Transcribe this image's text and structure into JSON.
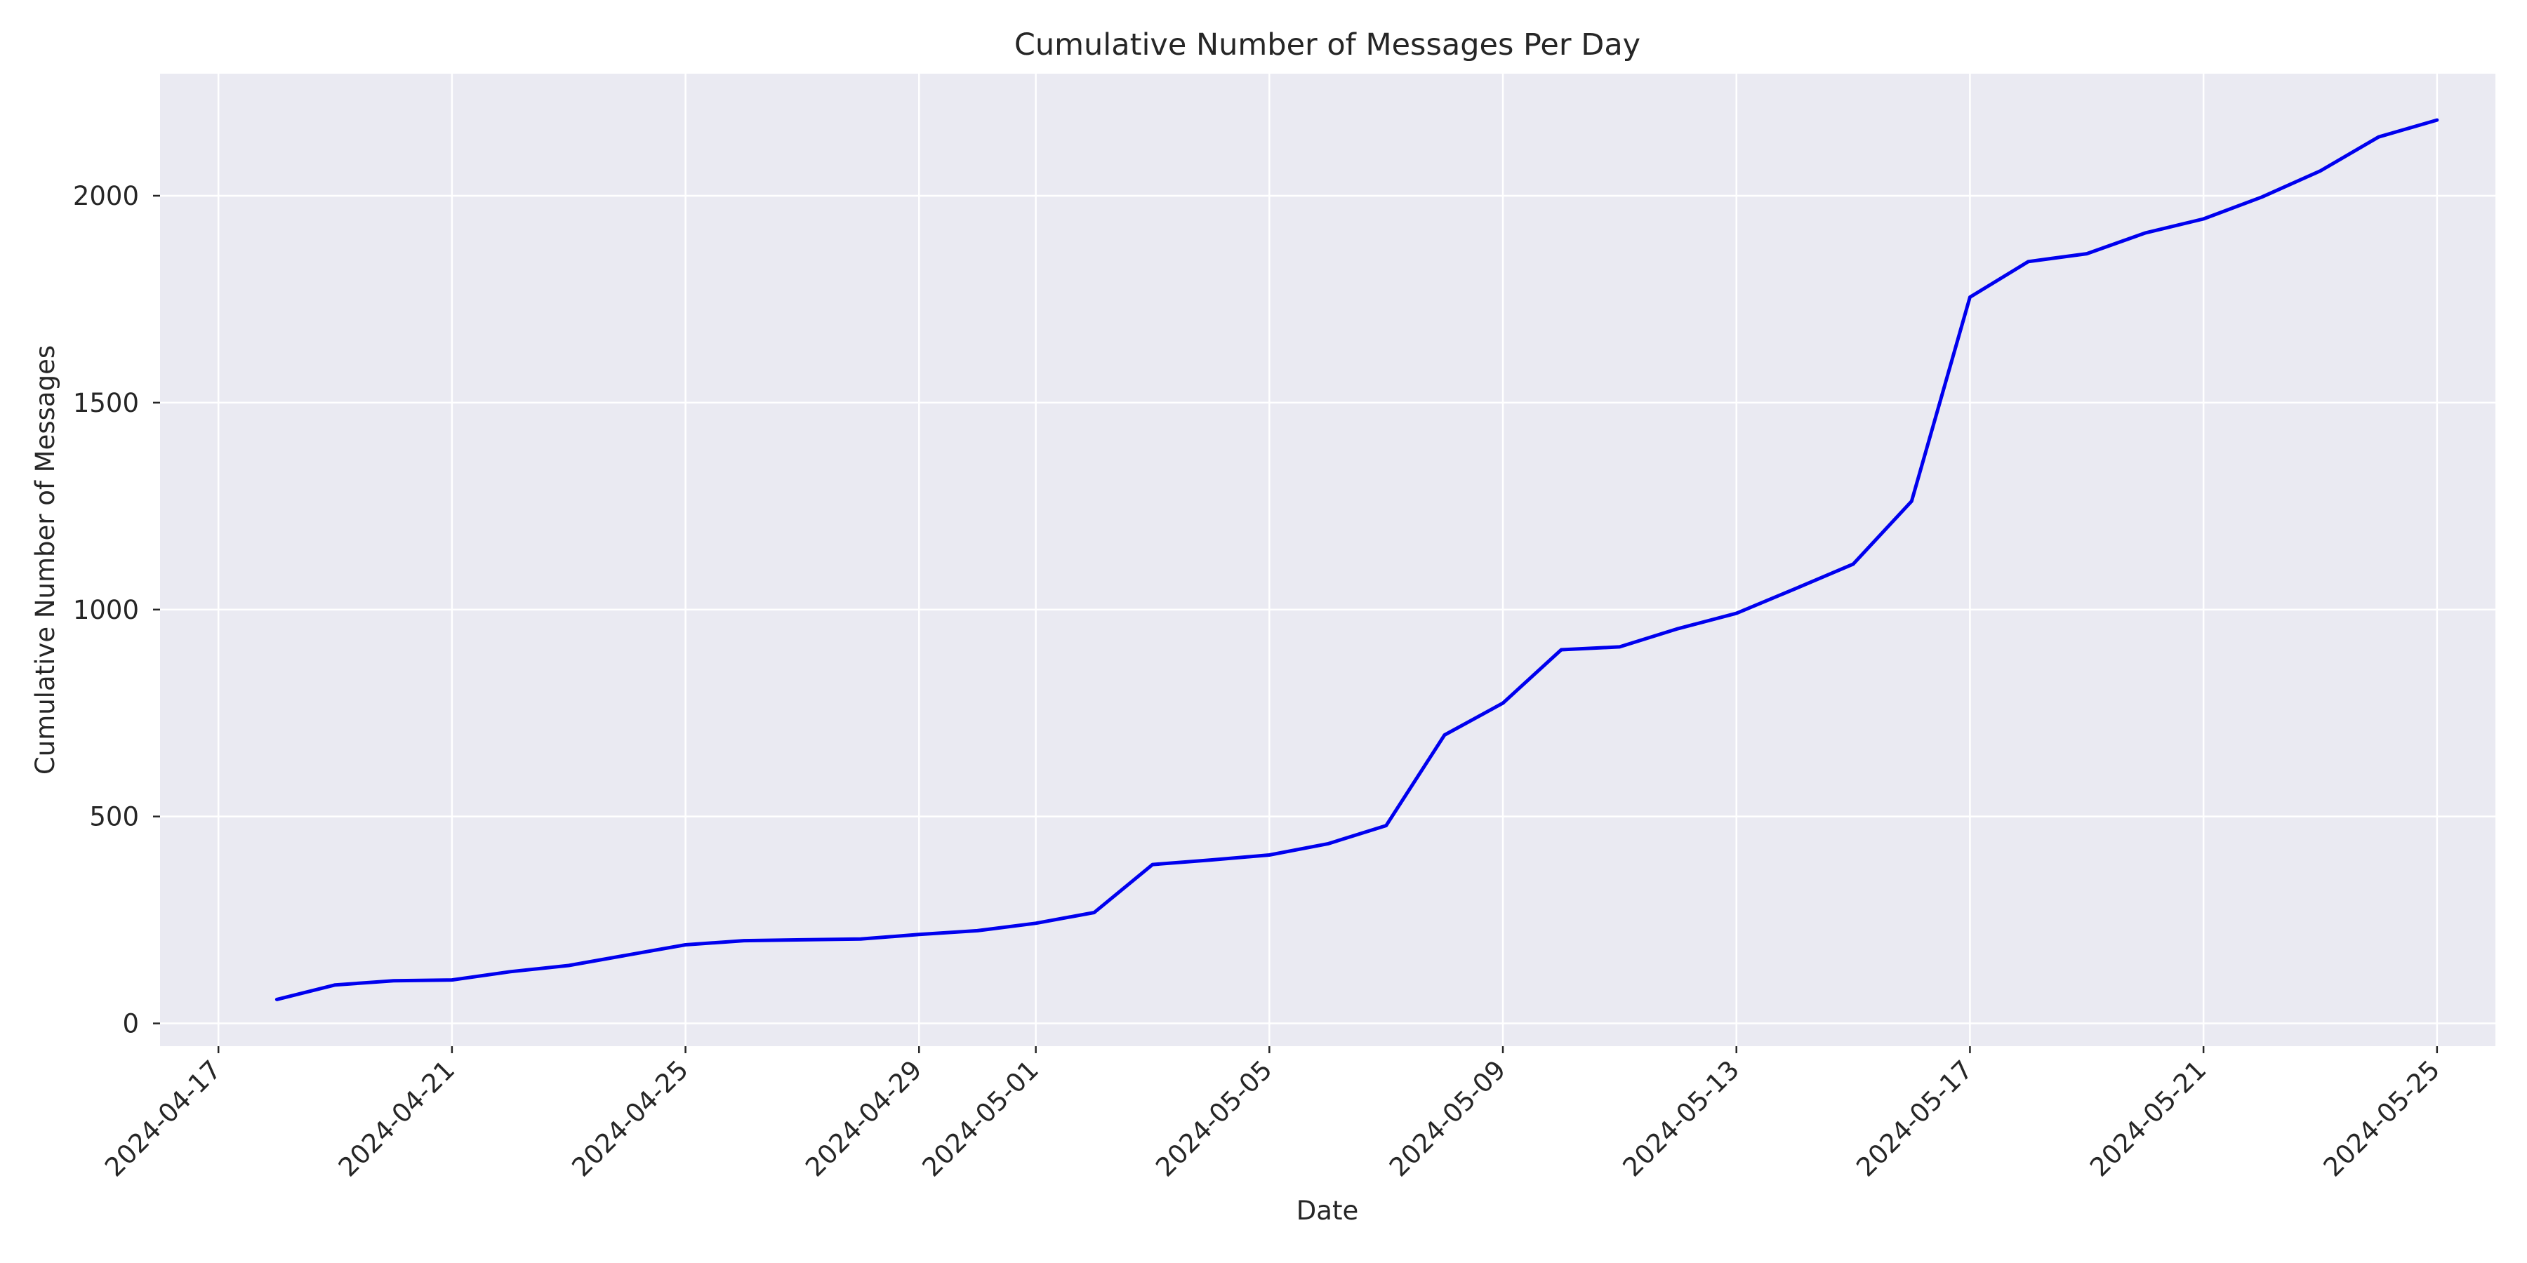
{
  "chart_data": {
    "type": "line",
    "title": "Cumulative Number of Messages Per Day",
    "xlabel": "Date",
    "ylabel": "Cumulative Number of Messages",
    "x_ticks": [
      "2024-04-17",
      "2024-04-21",
      "2024-04-25",
      "2024-04-29",
      "2024-05-01",
      "2024-05-05",
      "2024-05-09",
      "2024-05-13",
      "2024-05-17",
      "2024-05-21",
      "2024-05-25"
    ],
    "y_ticks": [
      0,
      500,
      1000,
      1500,
      2000
    ],
    "xlim": [
      "2024-04-16",
      "2024-05-26"
    ],
    "ylim": [
      -55,
      2295
    ],
    "grid": true,
    "colors": {
      "line": "#0000ee",
      "plot_bg": "#eaeaf2"
    },
    "series": [
      {
        "x": [
          "2024-04-18",
          "2024-04-19",
          "2024-04-20",
          "2024-04-21",
          "2024-04-22",
          "2024-04-23",
          "2024-04-24",
          "2024-04-25",
          "2024-04-26",
          "2024-04-27",
          "2024-04-28",
          "2024-04-29",
          "2024-04-30",
          "2024-05-01",
          "2024-05-02",
          "2024-05-03",
          "2024-05-04",
          "2024-05-05",
          "2024-05-06",
          "2024-05-07",
          "2024-05-08",
          "2024-05-09",
          "2024-05-10",
          "2024-05-11",
          "2024-05-12",
          "2024-05-13",
          "2024-05-14",
          "2024-05-15",
          "2024-05-16",
          "2024-05-17",
          "2024-05-18",
          "2024-05-19",
          "2024-05-20",
          "2024-05-21",
          "2024-05-22",
          "2024-05-23",
          "2024-05-24",
          "2024-05-25"
        ],
        "y": [
          58,
          93,
          103,
          105,
          125,
          140,
          165,
          190,
          200,
          202,
          204,
          215,
          224,
          242,
          268,
          384,
          395,
          407,
          434,
          478,
          697,
          774,
          903,
          910,
          954,
          991,
          1050,
          1110,
          1262,
          1755,
          1841,
          1860,
          1910,
          1944,
          1997,
          2060,
          2142,
          2183
        ]
      }
    ]
  }
}
